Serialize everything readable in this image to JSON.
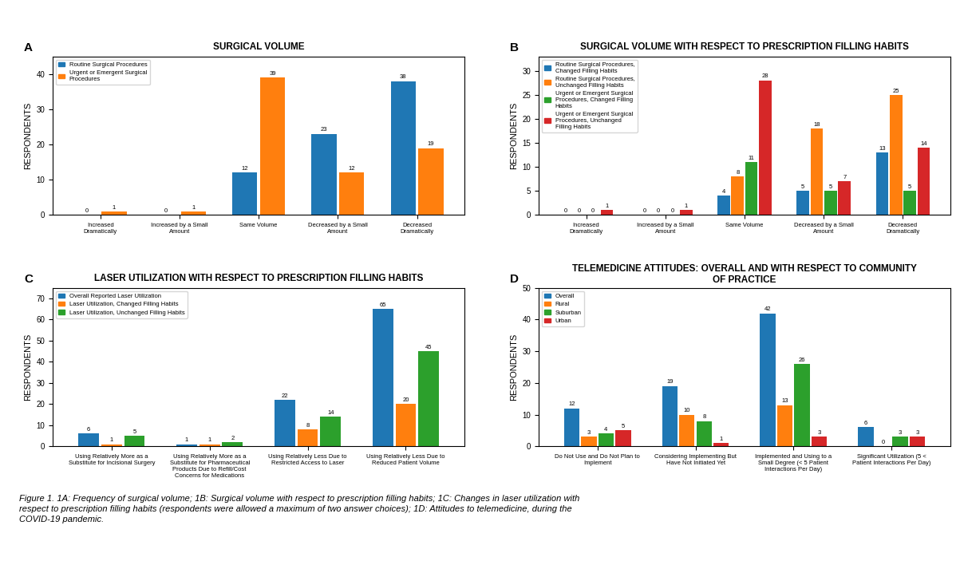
{
  "chart_data": [
    {
      "type": "bar",
      "title": "SURGICAL VOLUME",
      "annotations": [
        {
          "text": "A"
        }
      ],
      "categories": [
        "Increased\nDramatically",
        "Increased by a Small\nAmount",
        "Same Volume",
        "Decreased by a Small\nAmount",
        "Decreased\nDramatically"
      ],
      "series": [
        {
          "name": "Routine Surgical Procedures",
          "values": [
            0,
            0,
            12,
            23,
            38
          ]
        },
        {
          "name": "Urgent or Emergent Surgical\nProcedures",
          "values": [
            1,
            1,
            39,
            12,
            19
          ]
        }
      ],
      "ylabel": "RESPONDENTS",
      "ylim": [
        0,
        45
      ],
      "yticks": [
        0,
        10,
        20,
        30,
        40
      ],
      "grid": false,
      "legend": "upper left",
      "data_labels": true
    },
    {
      "type": "bar",
      "title": "SURGICAL VOLUME WITH RESPECT TO PRESCRIPTION FILLING HABITS",
      "annotations": [
        {
          "text": "B"
        }
      ],
      "categories": [
        "Increased\nDramatically",
        "Increased by a Small\nAmount",
        "Same Volume",
        "Decreased by a Small\nAmount",
        "Decreased\nDramatically"
      ],
      "series": [
        {
          "name": "Routine Surgical Procedures,\nChanged Filling Habits",
          "values": [
            0,
            0,
            4,
            5,
            13
          ]
        },
        {
          "name": "Routine Surgical Procedures,\nUnchanged Filling Habits",
          "values": [
            0,
            0,
            8,
            18,
            25
          ]
        },
        {
          "name": "Urgent or Emergent Surgical\nProcedures, Changed Filling\nHabits",
          "values": [
            0,
            0,
            11,
            5,
            5
          ]
        },
        {
          "name": "Urgent or Emergent Surgical\nProcedures, Unchanged\nFilling Habits",
          "values": [
            1,
            1,
            28,
            7,
            14
          ]
        }
      ],
      "ylabel": "RESPONDENTS",
      "ylim": [
        0,
        33
      ],
      "yticks": [
        0,
        5,
        10,
        15,
        20,
        25,
        30
      ],
      "grid": false,
      "legend": "upper left",
      "data_labels": true
    },
    {
      "type": "bar",
      "title": "LASER UTILIZATION WITH RESPECT TO PRESCRIPTION FILLING HABITS",
      "annotations": [
        {
          "text": "C"
        }
      ],
      "categories": [
        "Using Relatively More as a\nSubstitute for Incisional Surgery",
        "Using Relatively More as a\nSubstitute for Pharmaceutical\nProducts Due to Refill/Cost\nConcerns for Medications",
        "Using Relatively Less Due to\nRestricted Access to Laser",
        "Using Relatively Less Due to\nReduced Patient Volume"
      ],
      "series": [
        {
          "name": "Overall Reported Laser Utilization",
          "values": [
            6,
            1,
            22,
            65
          ]
        },
        {
          "name": "Laser Utilization, Changed Filling Habits",
          "values": [
            1,
            1,
            8,
            20
          ]
        },
        {
          "name": "Laser Utilization, Unchanged Filling Habits",
          "values": [
            5,
            2,
            14,
            45
          ]
        }
      ],
      "ylabel": "RESPONDENTS",
      "ylim": [
        0,
        75
      ],
      "yticks": [
        0,
        10,
        20,
        30,
        40,
        50,
        60,
        70
      ],
      "grid": false,
      "legend": "upper left",
      "data_labels": true
    },
    {
      "type": "bar",
      "title": "TELEMEDICINE ATTITUDES: OVERALL AND WITH RESPECT TO COMMUNITY\nOF PRACTICE",
      "annotations": [
        {
          "text": "D"
        }
      ],
      "categories": [
        "Do Not Use and Do Not Plan to\nImplement",
        "Considering Implementing But\nHave Not Initiated Yet",
        "Implemented and Using to a\nSmall Degree (< 5 Patient\nInteractions Per Day)",
        "Significant Utilization (5 <\nPatient Interactions Per Day)"
      ],
      "series": [
        {
          "name": "Overall",
          "values": [
            12,
            19,
            42,
            6
          ]
        },
        {
          "name": "Rural",
          "values": [
            3,
            10,
            13,
            0
          ]
        },
        {
          "name": "Suburban",
          "values": [
            4,
            8,
            26,
            3
          ]
        },
        {
          "name": "Urban",
          "values": [
            5,
            1,
            3,
            3
          ]
        }
      ],
      "ylabel": "RESPONDENTS",
      "ylim": [
        0,
        50
      ],
      "yticks": [
        0,
        10,
        20,
        30,
        40,
        50
      ],
      "grid": false,
      "legend": "upper left",
      "data_labels": true
    }
  ],
  "caption": "Figure 1. 1A: Frequency of surgical volume; 1B: Surgical volume with respect to prescription filling habits; 1C: Changes in laser utilization with\nrespect to prescription filling habits (respondents were allowed a maximum of two answer choices); 1D: Attitudes to telemedicine, during the\nCOVID-19 pandemic."
}
